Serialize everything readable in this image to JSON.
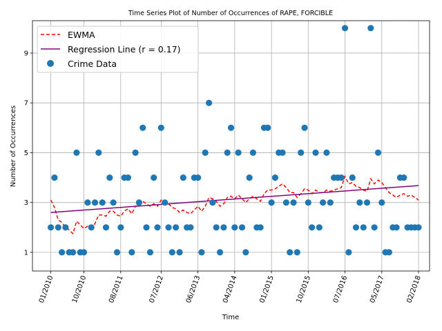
{
  "chart_data": {
    "type": "scatter",
    "title": "Time Series Plot of Number of Occurrences of RAPE, FORCIBLE",
    "xlabel": "Time",
    "ylabel": "Number of Occurrences",
    "x_tick_labels": [
      "01/2010",
      "10/2010",
      "08/2011",
      "07/2012",
      "06/2013",
      "04/2014",
      "01/2015",
      "10/2015",
      "07/2016",
      "05/2017",
      "02/2018"
    ],
    "y_tick_labels": [
      "1",
      "3",
      "5",
      "7",
      "9"
    ],
    "y_ticks": [
      1,
      3,
      5,
      7,
      9
    ],
    "ylim": [
      0.25,
      10.3
    ],
    "xlim": [
      -5,
      103
    ],
    "x_tick_positions": [
      0,
      9,
      19,
      30,
      40,
      50,
      60,
      70,
      80,
      90,
      100
    ],
    "grid": true,
    "legend_position": "top-left",
    "legend": [
      {
        "label": "EWMA",
        "style": "dashed",
        "color": "#ff0000"
      },
      {
        "label": "Regression Line (r = 0.17)",
        "style": "solid",
        "color": "#800080"
      },
      {
        "label": "Crime Data",
        "style": "marker",
        "color": "#1f77b4"
      }
    ],
    "series": [
      {
        "name": "Crime Data",
        "color": "#1f77b4",
        "x": [
          0,
          1,
          2,
          3,
          4,
          5,
          6,
          7,
          8,
          9,
          10,
          11,
          12,
          13,
          14,
          15,
          16,
          17,
          18,
          19,
          20,
          21,
          22,
          23,
          24,
          25,
          26,
          27,
          28,
          29,
          30,
          31,
          32,
          33,
          34,
          35,
          36,
          37,
          38,
          39,
          40,
          41,
          42,
          43,
          44,
          45,
          46,
          47,
          48,
          49,
          50,
          51,
          52,
          53,
          54,
          55,
          56,
          57,
          58,
          59,
          60,
          61,
          62,
          63,
          64,
          65,
          66,
          67,
          68,
          69,
          70,
          71,
          72,
          73,
          74,
          75,
          76,
          77,
          78,
          79,
          80,
          81,
          82,
          83,
          84,
          85,
          86,
          87,
          88,
          89,
          90,
          91,
          92,
          93,
          94,
          95,
          96,
          97,
          98,
          99,
          100
        ],
        "y": [
          2,
          4,
          2,
          1,
          2,
          1,
          1,
          5,
          1,
          1,
          3,
          2,
          3,
          5,
          3,
          2,
          4,
          3,
          1,
          2,
          4,
          4,
          1,
          5,
          3,
          6,
          2,
          1,
          4,
          2,
          6,
          3,
          2,
          1,
          2,
          1,
          4,
          2,
          2,
          4,
          4,
          1,
          5,
          7,
          3,
          2,
          1,
          2,
          5,
          6,
          2,
          5,
          2,
          1,
          4,
          5,
          2,
          2,
          6,
          6,
          3,
          4,
          5,
          5,
          3,
          1,
          3,
          1,
          5,
          6,
          3,
          2,
          5,
          2,
          3,
          5,
          3,
          4,
          4,
          4,
          10,
          1,
          4,
          2,
          3,
          2,
          3,
          10,
          2,
          5,
          3,
          1,
          1,
          2,
          2,
          4,
          4,
          2,
          2,
          2,
          2
        ]
      },
      {
        "name": "EWMA",
        "color": "#ff0000",
        "x": [
          0,
          1,
          2,
          3,
          4,
          5,
          6,
          7,
          8,
          9,
          10,
          11,
          12,
          13,
          14,
          15,
          16,
          17,
          18,
          19,
          20,
          21,
          22,
          23,
          24,
          25,
          26,
          27,
          28,
          29,
          30,
          31,
          32,
          33,
          34,
          35,
          36,
          37,
          38,
          39,
          40,
          41,
          42,
          43,
          44,
          45,
          46,
          47,
          48,
          49,
          50,
          51,
          52,
          53,
          54,
          55,
          56,
          57,
          58,
          59,
          60,
          61,
          62,
          63,
          64,
          65,
          66,
          67,
          68,
          69,
          70,
          71,
          72,
          73,
          74,
          75,
          76,
          77,
          78,
          79,
          80,
          81,
          82,
          83,
          84,
          85,
          86,
          87,
          88,
          89,
          90,
          91,
          92,
          93,
          94,
          95,
          96,
          97,
          98,
          99,
          100
        ],
        "y": [
          3.1,
          2.8,
          2.3,
          2.2,
          2.0,
          1.9,
          1.75,
          2.25,
          2.1,
          1.95,
          2.05,
          2.0,
          2.15,
          2.5,
          2.5,
          2.45,
          2.65,
          2.65,
          2.5,
          2.45,
          2.65,
          2.75,
          2.55,
          2.85,
          2.9,
          3.05,
          2.95,
          2.85,
          2.95,
          2.85,
          3.1,
          3.05,
          2.95,
          2.8,
          2.75,
          2.6,
          2.7,
          2.6,
          2.55,
          2.7,
          2.85,
          2.65,
          2.85,
          3.2,
          3.15,
          3.05,
          2.85,
          2.95,
          3.2,
          3.25,
          3.15,
          3.3,
          3.15,
          3.0,
          3.15,
          3.25,
          3.15,
          3.05,
          3.35,
          3.5,
          3.5,
          3.55,
          3.65,
          3.75,
          3.6,
          3.4,
          3.4,
          3.2,
          3.35,
          3.55,
          3.5,
          3.35,
          3.5,
          3.4,
          3.4,
          3.5,
          3.45,
          3.5,
          3.55,
          3.6,
          4.05,
          3.75,
          3.8,
          3.65,
          3.6,
          3.5,
          3.45,
          3.95,
          3.75,
          3.9,
          3.8,
          3.6,
          3.4,
          3.3,
          3.2,
          3.3,
          3.35,
          3.25,
          3.3,
          3.2,
          3.1
        ]
      },
      {
        "name": "Regression Line (r = 0.17)",
        "color": "#800080",
        "x": [
          0,
          100
        ],
        "y": [
          2.6,
          3.68
        ]
      }
    ]
  }
}
